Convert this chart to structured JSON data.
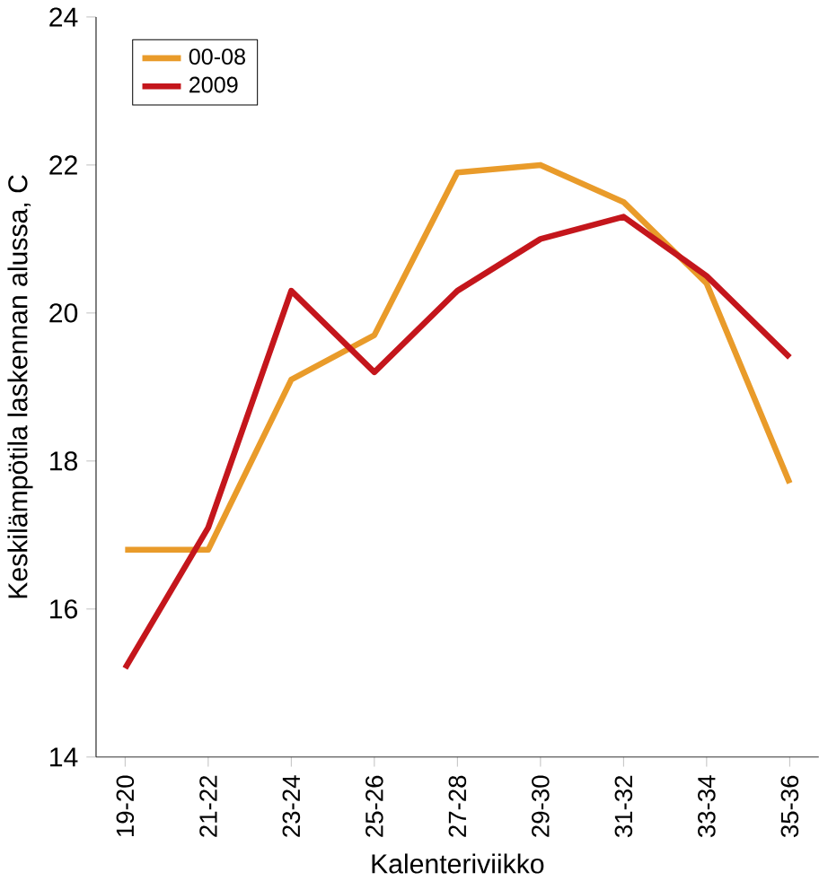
{
  "chart_data": {
    "type": "line",
    "xlabel": "Kalenteriviikko",
    "ylabel": "Keskilämpötila laskennan alussa, C",
    "categories": [
      "19-20",
      "21-22",
      "23-24",
      "25-26",
      "27-28",
      "29-30",
      "31-32",
      "33-34",
      "35-36"
    ],
    "series": [
      {
        "name": "00-08",
        "color": "#e99b2a",
        "values": [
          16.8,
          16.8,
          19.1,
          19.7,
          21.9,
          22.0,
          21.5,
          20.4,
          17.7
        ]
      },
      {
        "name": "2009",
        "color": "#c4161c",
        "values": [
          15.2,
          17.1,
          20.3,
          19.2,
          20.3,
          21.0,
          21.3,
          20.5,
          19.4
        ]
      }
    ],
    "ylim": [
      14,
      24
    ],
    "yticks": [
      14,
      16,
      18,
      20,
      22,
      24
    ],
    "grid": false,
    "legend": "top left",
    "marker": "none",
    "line_style": "solid"
  }
}
